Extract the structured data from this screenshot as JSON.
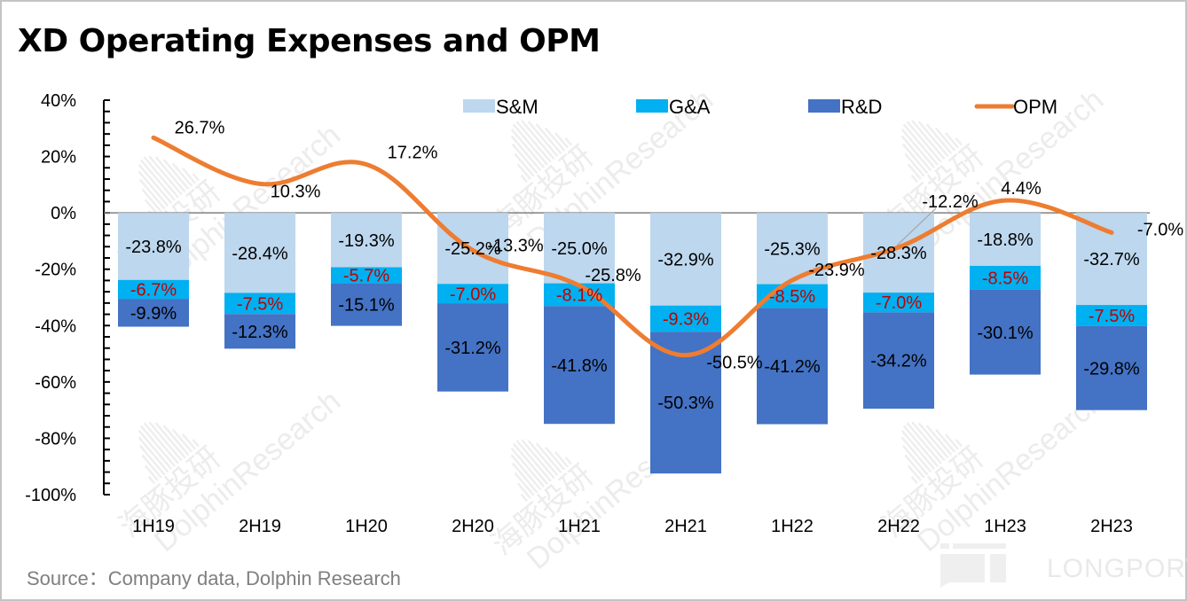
{
  "title": "XD Operating Expenses and OPM",
  "source": "Source：Company data, Dolphin Research",
  "brand": {
    "name": "LONGPORT",
    "watermark": "DolphinResearch",
    "watermark_cn": "海豚投研"
  },
  "colors": {
    "sm": "#bdd7ee",
    "ga": "#00b0f0",
    "rd": "#4472c4",
    "opm": "#ed7d31",
    "ga_label": "#c00000",
    "axis": "#000000",
    "zero_line": "#808080"
  },
  "chart_data": {
    "type": "bar",
    "subtype": "stacked-bar-with-line",
    "title": "XD Operating Expenses and OPM",
    "xlabel": "",
    "ylabel": "",
    "ylim": [
      -100,
      40
    ],
    "yticks": [
      "40%",
      "20%",
      "0%",
      "-20%",
      "-40%",
      "-60%",
      "-80%",
      "-100%"
    ],
    "ytick_values": [
      40,
      20,
      0,
      -20,
      -40,
      -60,
      -80,
      -100
    ],
    "grid": false,
    "legend_position": "top-right",
    "categories": [
      "1H19",
      "2H19",
      "1H20",
      "2H20",
      "1H21",
      "2H21",
      "1H22",
      "2H22",
      "1H23",
      "2H23"
    ],
    "series": [
      {
        "name": "S&M",
        "type": "bar",
        "values": [
          -23.8,
          -28.4,
          -19.3,
          -25.2,
          -25.0,
          -32.9,
          -25.3,
          -28.3,
          -18.8,
          -32.7
        ],
        "labels": [
          "-23.8%",
          "-28.4%",
          "-19.3%",
          "-25.2%",
          "-25.0%",
          "-32.9%",
          "-25.3%",
          "-28.3%",
          "-18.8%",
          "-32.7%"
        ]
      },
      {
        "name": "G&A",
        "type": "bar",
        "values": [
          -6.7,
          -7.5,
          -5.7,
          -7.0,
          -8.1,
          -9.3,
          -8.5,
          -7.0,
          -8.5,
          -7.5
        ],
        "labels": [
          "-6.7%",
          "-7.5%",
          "-5.7%",
          "-7.0%",
          "-8.1%",
          "-9.3%",
          "-8.5%",
          "-7.0%",
          "-8.5%",
          "-7.5%"
        ]
      },
      {
        "name": "R&D",
        "type": "bar",
        "values": [
          -9.9,
          -12.3,
          -15.1,
          -31.2,
          -41.8,
          -50.3,
          -41.2,
          -34.2,
          -30.1,
          -29.8
        ],
        "labels": [
          "-9.9%",
          "-12.3%",
          "-15.1%",
          "-31.2%",
          "-41.8%",
          "-50.3%",
          "-41.2%",
          "-34.2%",
          "-30.1%",
          "-29.8%"
        ]
      },
      {
        "name": "OPM",
        "type": "line",
        "values": [
          26.7,
          10.3,
          17.2,
          -13.3,
          -25.8,
          -50.5,
          -23.9,
          -12.2,
          4.4,
          -7.0
        ],
        "labels": [
          "26.7%",
          "10.3%",
          "17.2%",
          "-13.3%",
          "-25.8%",
          "-50.5%",
          "-23.9%",
          "-12.2%",
          "4.4%",
          "-7.0%"
        ]
      }
    ]
  }
}
